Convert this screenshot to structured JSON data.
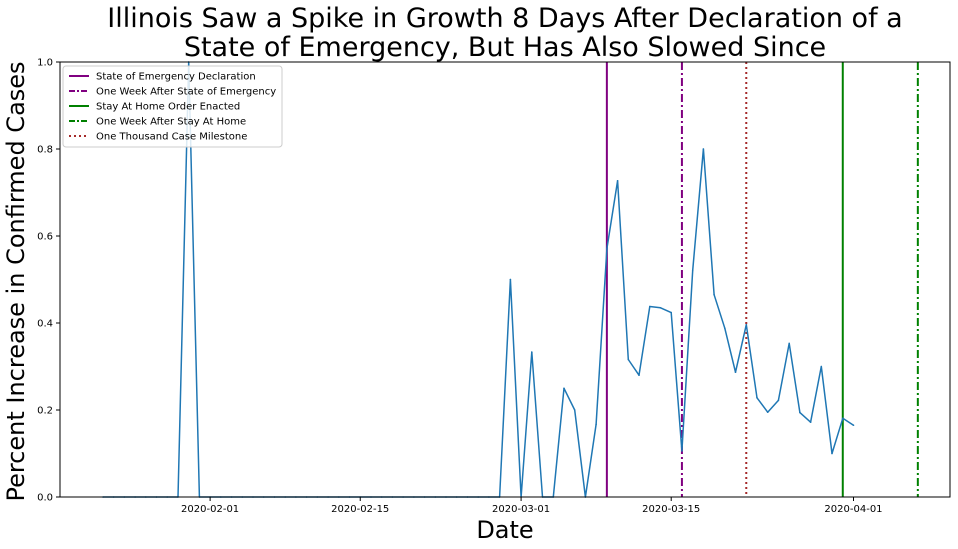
{
  "chart_data": {
    "type": "line",
    "title_line1": "Illinois Saw a Spike in Growth 8 Days After Declaration of a",
    "title_line2": "State of Emergency, But Has Also Slowed Since",
    "xlabel": "Date",
    "ylabel": "Percent Increase in Confirmed Cases",
    "xlim": [
      "2020-01-18",
      "2020-04-10"
    ],
    "ylim": [
      0,
      1.0
    ],
    "yticks": [
      "0.0",
      "0.2",
      "0.4",
      "0.6",
      "0.8",
      "1.0"
    ],
    "xticks": [
      "2020-02-01",
      "2020-02-15",
      "2020-03-01",
      "2020-03-15",
      "2020-04-01"
    ],
    "grid": false,
    "legend_position": "top-left",
    "series": [
      {
        "color": "#1f77b4",
        "x": [
          "2020-01-22",
          "2020-01-23",
          "2020-01-24",
          "2020-01-25",
          "2020-01-26",
          "2020-01-27",
          "2020-01-28",
          "2020-01-29",
          "2020-01-30",
          "2020-01-31",
          "2020-02-01",
          "2020-02-02",
          "2020-02-03",
          "2020-02-04",
          "2020-02-05",
          "2020-02-06",
          "2020-02-07",
          "2020-02-08",
          "2020-02-09",
          "2020-02-10",
          "2020-02-11",
          "2020-02-12",
          "2020-02-13",
          "2020-02-14",
          "2020-02-15",
          "2020-02-16",
          "2020-02-17",
          "2020-02-18",
          "2020-02-19",
          "2020-02-20",
          "2020-02-21",
          "2020-02-22",
          "2020-02-23",
          "2020-02-24",
          "2020-02-25",
          "2020-02-26",
          "2020-02-27",
          "2020-02-28",
          "2020-02-29",
          "2020-03-01",
          "2020-03-02",
          "2020-03-03",
          "2020-03-04",
          "2020-03-05",
          "2020-03-06",
          "2020-03-07",
          "2020-03-08",
          "2020-03-09",
          "2020-03-10",
          "2020-03-11",
          "2020-03-12",
          "2020-03-13",
          "2020-03-14",
          "2020-03-15",
          "2020-03-16",
          "2020-03-17",
          "2020-03-18",
          "2020-03-19",
          "2020-03-20",
          "2020-03-21",
          "2020-03-22",
          "2020-03-23",
          "2020-03-24",
          "2020-03-25",
          "2020-03-26",
          "2020-03-27",
          "2020-03-28",
          "2020-03-29",
          "2020-03-30",
          "2020-03-31",
          "2020-04-01"
        ],
        "values": [
          0,
          0,
          0,
          0,
          0,
          0,
          0,
          0,
          1.0,
          0,
          0,
          0,
          0,
          0,
          0,
          0,
          0,
          0,
          0,
          0,
          0,
          0,
          0,
          0,
          0,
          0,
          0,
          0,
          0,
          0,
          0,
          0,
          0,
          0,
          0,
          0,
          0,
          0,
          0.5,
          0,
          0.333,
          0,
          0,
          0.25,
          0.2,
          0,
          0.167,
          0.571,
          0.727,
          0.316,
          0.28,
          0.438,
          0.435,
          0.424,
          0.106,
          0.521,
          0.8,
          0.465,
          0.388,
          0.287,
          0.396,
          0.228,
          0.195,
          0.222,
          0.353,
          0.194,
          0.172,
          0.3,
          0.1,
          0.181,
          0.165
        ]
      }
    ],
    "event_lines": [
      {
        "label": "State of Emergency Declaration",
        "date": "2020-03-09",
        "color": "#800080",
        "dash": "solid"
      },
      {
        "label": "One Week After State of Emergency",
        "date": "2020-03-16",
        "color": "#800080",
        "dash": "dashdot"
      },
      {
        "label": "Stay At Home Order Enacted",
        "date": "2020-03-31",
        "color": "#008000",
        "dash": "solid"
      },
      {
        "label": "One Week After Stay At Home",
        "date": "2020-04-07",
        "color": "#008000",
        "dash": "dashdot"
      },
      {
        "label": "One Thousand Case Milestone",
        "date": "2020-03-22",
        "color": "#a52a2a",
        "dash": "dotted"
      }
    ]
  }
}
